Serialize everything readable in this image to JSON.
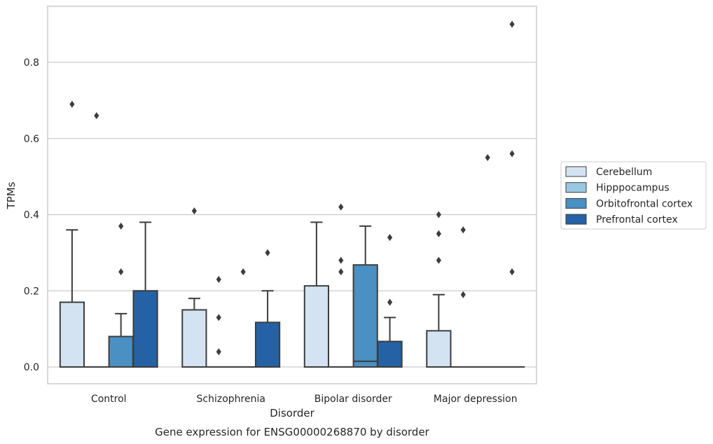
{
  "chart_data": {
    "type": "box",
    "title": "",
    "caption": "Gene expression for ENSG00000268870 by disorder",
    "xlabel": "Disorder",
    "ylabel": "TPMs",
    "ylim": [
      -0.045,
      0.945
    ],
    "yticks": [
      0.0,
      0.2,
      0.4,
      0.6,
      0.8
    ],
    "ytick_labels": [
      "0.0",
      "0.2",
      "0.4",
      "0.6",
      "0.8"
    ],
    "grid": "horizontal",
    "legend_position": "right",
    "categories": [
      "Control",
      "Schizophrenia",
      "Bipolar disorder",
      "Major depression"
    ],
    "series": [
      {
        "name": "Cerebellum",
        "color": "#d3e3f1",
        "boxes": [
          {
            "q1": 0.0,
            "median": 0.0,
            "q3": 0.17,
            "whisker_low": 0.0,
            "whisker_high": 0.36,
            "outliers": [
              0.69
            ]
          },
          {
            "q1": 0.0,
            "median": 0.0,
            "q3": 0.15,
            "whisker_low": 0.0,
            "whisker_high": 0.18,
            "outliers": [
              0.41
            ]
          },
          {
            "q1": 0.0,
            "median": 0.0,
            "q3": 0.213,
            "whisker_low": 0.0,
            "whisker_high": 0.38,
            "outliers": []
          },
          {
            "q1": 0.0,
            "median": 0.0,
            "q3": 0.095,
            "whisker_low": 0.0,
            "whisker_high": 0.19,
            "outliers": [
              0.28,
              0.35,
              0.4
            ]
          }
        ]
      },
      {
        "name": "Hipppocampus",
        "color": "#9ac8e0",
        "boxes": [
          {
            "q1": 0.0,
            "median": 0.0,
            "q3": 0.0,
            "whisker_low": 0.0,
            "whisker_high": 0.0,
            "outliers": [
              0.66
            ]
          },
          {
            "q1": 0.0,
            "median": 0.0,
            "q3": 0.0,
            "whisker_low": 0.0,
            "whisker_high": 0.0,
            "outliers": [
              0.04,
              0.13,
              0.23
            ]
          },
          {
            "q1": 0.0,
            "median": 0.0,
            "q3": 0.0,
            "whisker_low": 0.0,
            "whisker_high": 0.0,
            "outliers": [
              0.25,
              0.28,
              0.42
            ]
          },
          {
            "q1": 0.0,
            "median": 0.0,
            "q3": 0.0,
            "whisker_low": 0.0,
            "whisker_high": 0.0,
            "outliers": [
              0.19,
              0.36
            ]
          }
        ]
      },
      {
        "name": "Orbitofrontal cortex",
        "color": "#4a90c2",
        "boxes": [
          {
            "q1": 0.0,
            "median": 0.0,
            "q3": 0.08,
            "whisker_low": 0.0,
            "whisker_high": 0.14,
            "outliers": [
              0.25,
              0.37
            ]
          },
          {
            "q1": 0.0,
            "median": 0.0,
            "q3": 0.0,
            "whisker_low": 0.0,
            "whisker_high": 0.0,
            "outliers": [
              0.25
            ]
          },
          {
            "q1": 0.0,
            "median": 0.015,
            "q3": 0.268,
            "whisker_low": 0.0,
            "whisker_high": 0.37,
            "outliers": []
          },
          {
            "q1": 0.0,
            "median": 0.0,
            "q3": 0.0,
            "whisker_low": 0.0,
            "whisker_high": 0.0,
            "outliers": [
              0.55
            ]
          }
        ]
      },
      {
        "name": "Prefrontal cortex",
        "color": "#2462a5",
        "boxes": [
          {
            "q1": 0.0,
            "median": 0.0,
            "q3": 0.2,
            "whisker_low": 0.0,
            "whisker_high": 0.38,
            "outliers": []
          },
          {
            "q1": 0.0,
            "median": 0.0,
            "q3": 0.117,
            "whisker_low": 0.0,
            "whisker_high": 0.2,
            "outliers": [
              0.3
            ]
          },
          {
            "q1": 0.0,
            "median": 0.0,
            "q3": 0.067,
            "whisker_low": 0.0,
            "whisker_high": 0.13,
            "outliers": [
              0.17,
              0.34
            ]
          },
          {
            "q1": 0.0,
            "median": 0.0,
            "q3": 0.0,
            "whisker_low": 0.0,
            "whisker_high": 0.0,
            "outliers": [
              0.25,
              0.56,
              0.9
            ]
          }
        ]
      }
    ]
  }
}
